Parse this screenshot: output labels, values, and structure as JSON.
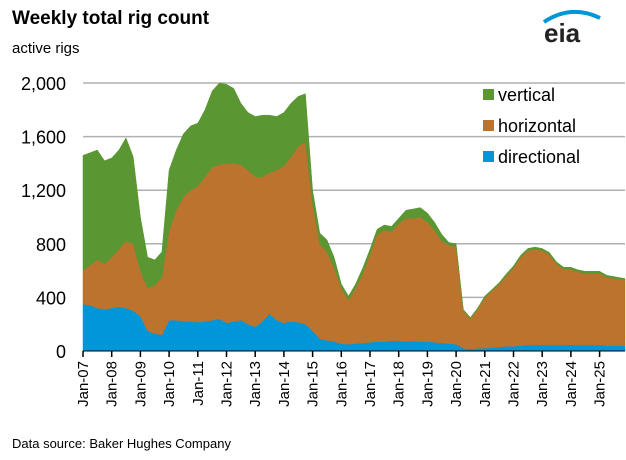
{
  "chart_data": {
    "type": "area",
    "stacked": true,
    "title": "Weekly total rig count",
    "ylabel": "active rigs",
    "source": "Data source: Baker Hughes Company",
    "logo_text": "eia",
    "ylim": [
      0,
      2000
    ],
    "yticks": [
      0,
      400,
      800,
      1200,
      1600,
      2000
    ],
    "ytick_labels": [
      "0",
      "400",
      "800",
      "1,200",
      "1,600",
      "2,000"
    ],
    "xtick_labels": [
      "Jan-07",
      "Jan-08",
      "Jan-09",
      "Jan-10",
      "Jan-11",
      "Jan-12",
      "Jan-13",
      "Jan-14",
      "Jan-15",
      "Jan-16",
      "Jan-17",
      "Jan-18",
      "Jan-19",
      "Jan-20",
      "Jan-21",
      "Jan-22",
      "Jan-23",
      "Jan-24",
      "Jan-25"
    ],
    "grid": "horizontal",
    "legend_placement": "top-right",
    "x": [
      "2007-01",
      "2007-04",
      "2007-07",
      "2007-10",
      "2008-01",
      "2008-04",
      "2008-07",
      "2008-10",
      "2009-01",
      "2009-04",
      "2009-07",
      "2009-10",
      "2010-01",
      "2010-04",
      "2010-07",
      "2010-10",
      "2011-01",
      "2011-04",
      "2011-07",
      "2011-10",
      "2012-01",
      "2012-04",
      "2012-07",
      "2012-10",
      "2013-01",
      "2013-04",
      "2013-07",
      "2013-10",
      "2014-01",
      "2014-04",
      "2014-07",
      "2014-10",
      "2015-01",
      "2015-04",
      "2015-07",
      "2015-10",
      "2016-01",
      "2016-04",
      "2016-07",
      "2016-10",
      "2017-01",
      "2017-04",
      "2017-07",
      "2017-10",
      "2018-01",
      "2018-04",
      "2018-07",
      "2018-10",
      "2019-01",
      "2019-04",
      "2019-07",
      "2019-10",
      "2020-01",
      "2020-04",
      "2020-07",
      "2020-10",
      "2021-01",
      "2021-04",
      "2021-07",
      "2021-10",
      "2022-01",
      "2022-04",
      "2022-07",
      "2022-10",
      "2023-01",
      "2023-04",
      "2023-07",
      "2023-10",
      "2024-01",
      "2024-04",
      "2024-07",
      "2024-10",
      "2025-01",
      "2025-04",
      "2025-07"
    ],
    "series": [
      {
        "name": "directional",
        "color": "#0096d7",
        "values": [
          350,
          340,
          320,
          310,
          320,
          330,
          320,
          300,
          260,
          150,
          130,
          120,
          230,
          230,
          220,
          220,
          215,
          220,
          230,
          240,
          210,
          220,
          230,
          200,
          180,
          220,
          280,
          230,
          210,
          220,
          215,
          200,
          150,
          90,
          80,
          70,
          55,
          50,
          55,
          60,
          65,
          70,
          70,
          75,
          75,
          70,
          75,
          70,
          70,
          65,
          60,
          55,
          50,
          20,
          15,
          20,
          20,
          25,
          30,
          35,
          35,
          40,
          45,
          45,
          45,
          45,
          45,
          45,
          45,
          45,
          45,
          45,
          45,
          40,
          40
        ]
      },
      {
        "name": "horizontal",
        "color": "#bb732e",
        "values": [
          250,
          300,
          360,
          340,
          380,
          430,
          500,
          500,
          340,
          320,
          360,
          430,
          670,
          820,
          930,
          980,
          1015,
          1080,
          1140,
          1150,
          1190,
          1180,
          1160,
          1150,
          1120,
          1080,
          1050,
          1120,
          1170,
          1230,
          1315,
          1360,
          950,
          710,
          660,
          550,
          415,
          330,
          415,
          520,
          655,
          800,
          830,
          815,
          875,
          920,
          915,
          930,
          890,
          835,
          760,
          735,
          730,
          280,
          225,
          290,
          380,
          425,
          470,
          525,
          585,
          660,
          705,
          715,
          705,
          675,
          605,
          565,
          565,
          545,
          535,
          535,
          535,
          510,
          490
        ]
      },
      {
        "name": "vertical",
        "color": "#5a9632",
        "values": [
          860,
          840,
          820,
          770,
          740,
          740,
          770,
          650,
          400,
          230,
          190,
          190,
          450,
          450,
          470,
          480,
          470,
          500,
          570,
          610,
          590,
          560,
          460,
          430,
          450,
          460,
          430,
          400,
          400,
          400,
          370,
          360,
          100,
          80,
          90,
          80,
          30,
          30,
          30,
          40,
          40,
          40,
          40,
          40,
          40,
          60,
          70,
          70,
          70,
          60,
          50,
          20,
          20,
          10,
          10,
          10,
          10,
          10,
          10,
          15,
          15,
          15,
          15,
          15,
          15,
          15,
          15,
          15,
          15,
          15,
          15,
          15,
          15,
          15,
          10
        ]
      }
    ],
    "legend": [
      "vertical",
      "horizontal",
      "directional"
    ]
  }
}
